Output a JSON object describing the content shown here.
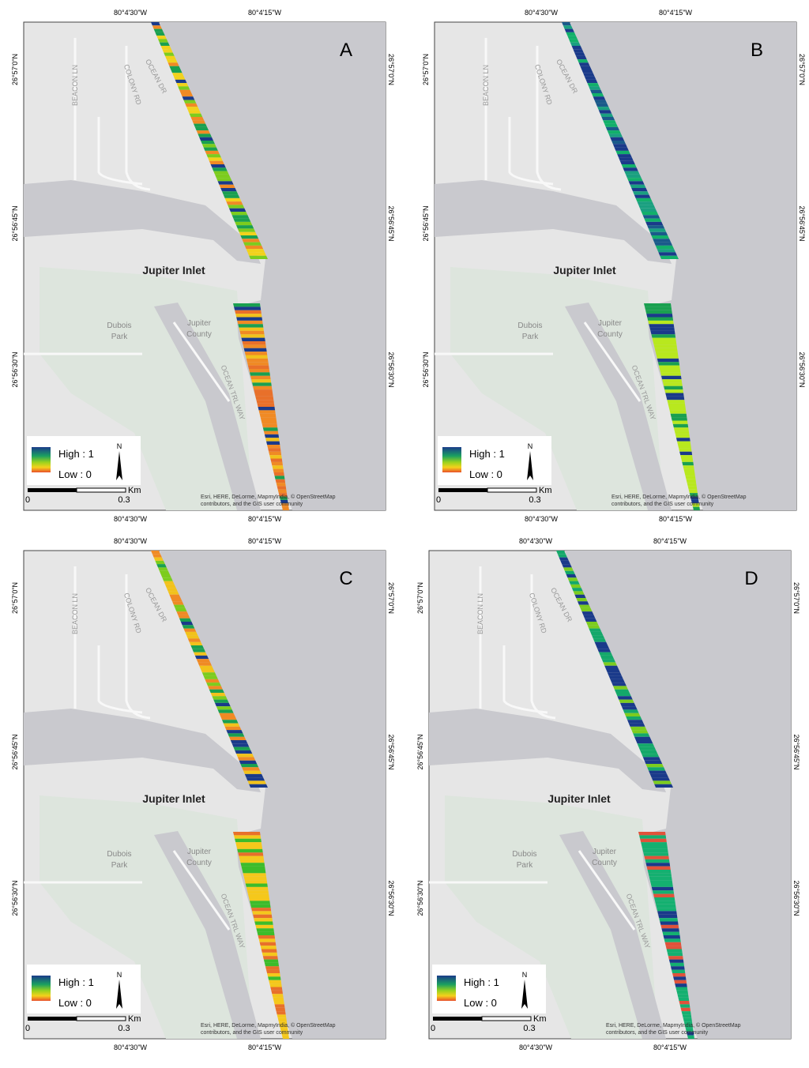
{
  "panels": [
    {
      "label": "A"
    },
    {
      "label": "B"
    },
    {
      "label": "C"
    },
    {
      "label": "D"
    }
  ],
  "map_labels": {
    "lon_west": "80°4'30\"W",
    "lon_east": "80°4'15\"W",
    "lat_north": "26°57'0\"N",
    "lat_mid": "26°56'45\"N",
    "lat_south": "26°56'30\"N",
    "inlet": "Jupiter Inlet",
    "park_1": "Dubois",
    "park_2": "Park",
    "county_1": "Jupiter",
    "county_2": "County",
    "street_beacon": "BEACON LN",
    "street_colony": "COLONY RD",
    "street_ocean": "OCEAN DR",
    "street_trail": "OCEAN TRL WAY"
  },
  "legend": {
    "high": "High : 1",
    "low": "Low : 0",
    "north": "N",
    "scale_start": "0",
    "scale_end": "0.3",
    "scale_unit": "Km"
  },
  "attribution": [
    "Esri, HERE, DeLorme, MapmyIndia, © OpenStreetMap",
    "contributors, and the GIS user community"
  ]
}
